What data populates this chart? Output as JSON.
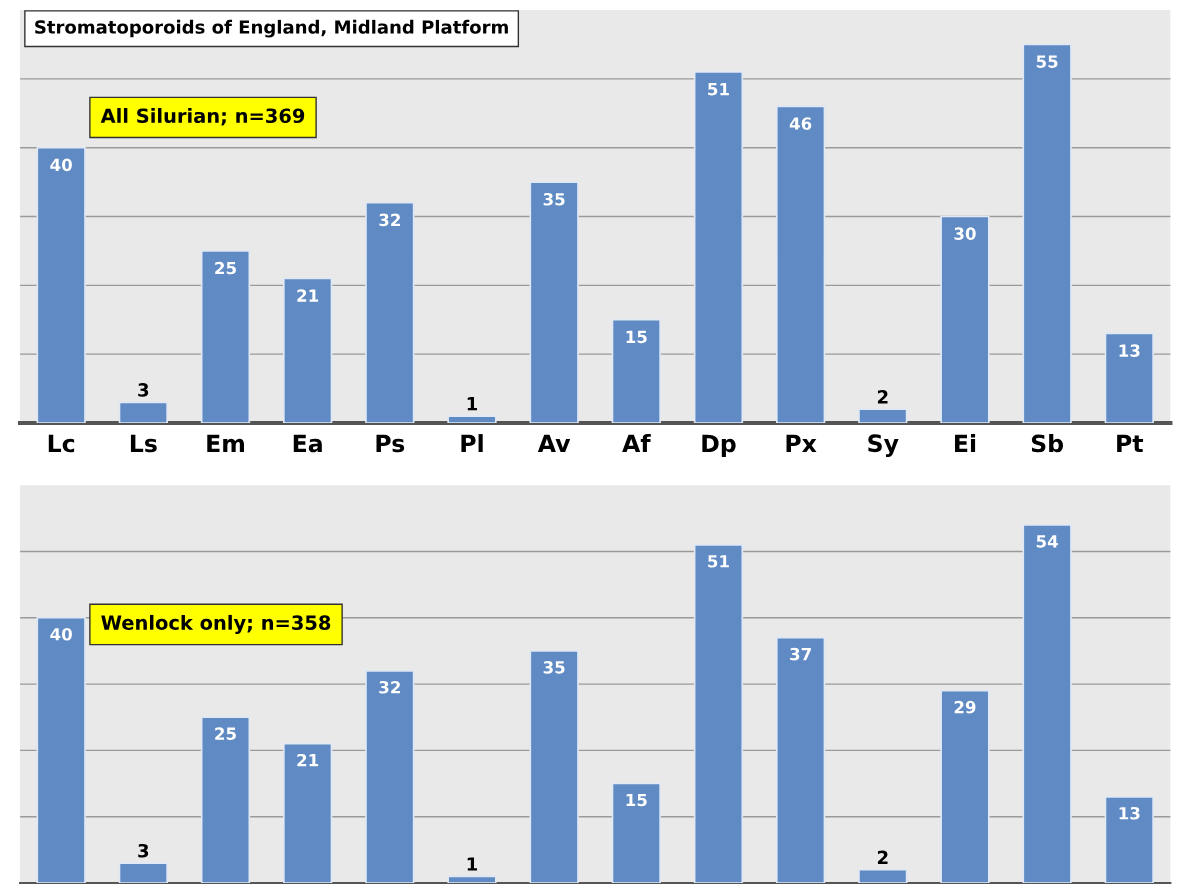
{
  "chart_data": [
    {
      "type": "bar",
      "title": "Stromatoporoids of England, Midland Platform",
      "annotations": [
        "All Silurian; n=369"
      ],
      "categories": [
        "Lc",
        "Ls",
        "Em",
        "Ea",
        "Ps",
        "Pl",
        "Av",
        "Af",
        "Dp",
        "Px",
        "Sy",
        "Ei",
        "Sb",
        "Pt"
      ],
      "values": [
        40,
        3,
        25,
        21,
        32,
        1,
        35,
        15,
        51,
        46,
        2,
        30,
        55,
        13
      ],
      "color": "#5f8ac3",
      "ylim": [
        0,
        60
      ],
      "yticks": [
        {
          "value": 10,
          "label": null
        },
        {
          "value": 20,
          "label": null
        },
        {
          "value": 30,
          "label": null
        },
        {
          "value": 40,
          "label": null
        },
        {
          "value": 50,
          "label": null
        }
      ],
      "grid": "y",
      "data_labels": true,
      "tick_labels": "x"
    },
    {
      "type": "bar",
      "annotations": [
        "Wenlock only; n=358"
      ],
      "categories": [
        null,
        null,
        null,
        null,
        null,
        null,
        null,
        null,
        null,
        null,
        null,
        null,
        null,
        null
      ],
      "values": [
        40,
        3,
        25,
        21,
        32,
        1,
        35,
        15,
        51,
        37,
        2,
        29,
        54,
        13
      ],
      "color": "#5f8ac3",
      "ylim": [
        0,
        60
      ],
      "yticks": [
        {
          "value": 10,
          "label": null
        },
        {
          "value": 20,
          "label": null
        },
        {
          "value": 30,
          "label": null
        },
        {
          "value": 40,
          "label": null
        },
        {
          "value": 50,
          "label": null
        }
      ],
      "grid": "y",
      "data_labels": true,
      "tick_labels": false
    }
  ]
}
